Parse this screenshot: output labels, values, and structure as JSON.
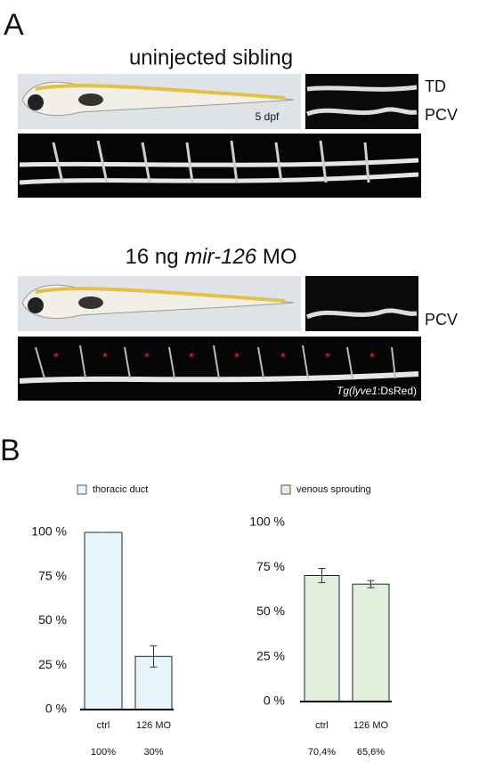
{
  "panel_a": {
    "label": "A",
    "top_title": "uninjected sibling",
    "stage": "5 dpf",
    "top_labels": [
      "TD",
      "PCV"
    ],
    "bottom_title": [
      "16 ng",
      "mir-126",
      "MO"
    ],
    "bottom_labels": [
      "PCV"
    ],
    "transgene": [
      "Tg(",
      "lyve1",
      ":DsRed)"
    ]
  },
  "panel_b": {
    "label": "B"
  },
  "chart_data": [
    {
      "type": "bar",
      "categories": [
        "ctrl",
        "126 MO"
      ],
      "series": [
        {
          "name": "thoracic duct",
          "color": "#e6f4fb",
          "values": [
            100,
            30
          ],
          "errors": [
            0,
            6
          ],
          "value_labels": [
            "100%",
            "30%"
          ]
        }
      ],
      "ylim": [
        0,
        100
      ],
      "yticks": [
        {
          "value": 0,
          "label": "0 %"
        },
        {
          "value": 25,
          "label": "25 %"
        },
        {
          "value": 50,
          "label": "50 %"
        },
        {
          "value": 75,
          "label": "75 %"
        },
        {
          "value": 100,
          "label": "100 %"
        }
      ]
    },
    {
      "type": "bar",
      "categories": [
        "ctrl",
        "126 MO"
      ],
      "series": [
        {
          "name": "venous sprouting",
          "color": "#e2efdc",
          "values": [
            70.4,
            65.6
          ],
          "errors": [
            4,
            2
          ],
          "value_labels": [
            "70,4%",
            "65,6%"
          ]
        }
      ],
      "ylim": [
        0,
        100
      ],
      "yticks": [
        {
          "value": 0,
          "label": "0 %"
        },
        {
          "value": 25,
          "label": "25 %"
        },
        {
          "value": 50,
          "label": "50 %"
        },
        {
          "value": 75,
          "label": "75 %"
        },
        {
          "value": 100,
          "label": "100 %"
        }
      ]
    }
  ]
}
